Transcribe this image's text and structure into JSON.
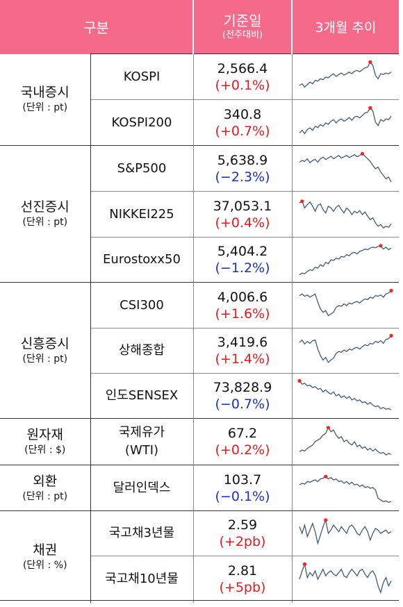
{
  "header": {
    "col_category": "구분",
    "col_base_line1": "기준일",
    "col_base_line2": "(전주대비)",
    "col_trend": "3개월 추이"
  },
  "groups": [
    {
      "name": "국내증시",
      "unit": "(단위 : pt)"
    },
    {
      "name": "선진증시",
      "unit": "(단위 : pt)"
    },
    {
      "name": "신흥증시",
      "unit": "(단위 : pt)"
    },
    {
      "name": "원자재",
      "unit": "(단위 : $)"
    },
    {
      "name": "외환",
      "unit": "(단위 : pt)"
    },
    {
      "name": "채권",
      "unit": "(단위 : %)"
    }
  ],
  "rows": [
    {
      "name": "KOSPI",
      "value": "2,566.4",
      "change": "(+0.1%)",
      "dir": "up",
      "trend": [
        0.25,
        0.3,
        0.2,
        0.28,
        0.35,
        0.3,
        0.4,
        0.38,
        0.45,
        0.42,
        0.5,
        0.48,
        0.55,
        0.6,
        0.52,
        0.58,
        0.62,
        0.56,
        0.6,
        0.65,
        0.6,
        0.68,
        0.7,
        0.66,
        0.72,
        0.78,
        0.8,
        0.95,
        0.85,
        0.55,
        0.45,
        0.6,
        0.58,
        0.62,
        0.6,
        0.65
      ]
    },
    {
      "name": "KOSPI200",
      "value": "340.8",
      "change": "(+0.7%)",
      "dir": "up",
      "trend": [
        0.2,
        0.28,
        0.18,
        0.3,
        0.35,
        0.28,
        0.4,
        0.36,
        0.45,
        0.4,
        0.5,
        0.46,
        0.55,
        0.6,
        0.5,
        0.58,
        0.62,
        0.55,
        0.6,
        0.66,
        0.58,
        0.68,
        0.7,
        0.65,
        0.72,
        0.8,
        0.82,
        0.95,
        0.86,
        0.52,
        0.42,
        0.6,
        0.55,
        0.62,
        0.6,
        0.7
      ]
    },
    {
      "name": "S&P500",
      "value": "5,638.9",
      "change": "(−2.3%)",
      "dir": "down",
      "trend": [
        0.7,
        0.75,
        0.72,
        0.8,
        0.68,
        0.75,
        0.78,
        0.7,
        0.8,
        0.85,
        0.78,
        0.82,
        0.88,
        0.8,
        0.85,
        0.9,
        0.82,
        0.86,
        0.9,
        0.84,
        0.88,
        0.92,
        0.86,
        0.9,
        0.95,
        0.88,
        0.8,
        0.72,
        0.6,
        0.5,
        0.55,
        0.4,
        0.3,
        0.2,
        0.25,
        0.1
      ]
    },
    {
      "name": "NIKKEI225",
      "value": "37,053.1",
      "change": "(+0.4%)",
      "dir": "up",
      "trend": [
        0.85,
        0.9,
        0.7,
        0.8,
        0.88,
        0.75,
        0.6,
        0.78,
        0.82,
        0.65,
        0.55,
        0.75,
        0.7,
        0.6,
        0.72,
        0.78,
        0.65,
        0.55,
        0.7,
        0.62,
        0.5,
        0.6,
        0.55,
        0.62,
        0.5,
        0.58,
        0.45,
        0.35,
        0.4,
        0.25,
        0.15,
        0.2,
        0.1,
        0.15,
        0.12,
        0.22
      ]
    },
    {
      "name": "Eurostoxx50",
      "value": "5,404.2",
      "change": "(−1.2%)",
      "dir": "down",
      "trend": [
        0.05,
        0.1,
        0.08,
        0.15,
        0.2,
        0.18,
        0.28,
        0.25,
        0.35,
        0.3,
        0.42,
        0.38,
        0.5,
        0.48,
        0.55,
        0.52,
        0.6,
        0.58,
        0.65,
        0.62,
        0.7,
        0.72,
        0.68,
        0.75,
        0.78,
        0.82,
        0.8,
        0.85,
        0.88,
        0.86,
        0.9,
        0.92,
        0.82,
        0.88,
        0.8,
        0.85
      ]
    },
    {
      "name": "CSI300",
      "value": "4,006.6",
      "change": "(+1.6%)",
      "dir": "up",
      "trend": [
        0.8,
        0.85,
        0.78,
        0.82,
        0.75,
        0.8,
        0.85,
        0.6,
        0.4,
        0.3,
        0.35,
        0.2,
        0.25,
        0.3,
        0.45,
        0.5,
        0.48,
        0.55,
        0.5,
        0.58,
        0.55,
        0.6,
        0.62,
        0.58,
        0.65,
        0.7,
        0.68,
        0.75,
        0.72,
        0.8,
        0.78,
        0.82,
        0.75,
        0.85,
        0.88,
        0.95
      ]
    },
    {
      "name": "상해종합",
      "value": "3,419.6",
      "change": "(+1.4%)",
      "dir": "up",
      "trend": [
        0.75,
        0.82,
        0.7,
        0.78,
        0.72,
        0.8,
        0.82,
        0.55,
        0.35,
        0.22,
        0.3,
        0.15,
        0.22,
        0.28,
        0.42,
        0.48,
        0.45,
        0.52,
        0.48,
        0.55,
        0.52,
        0.58,
        0.6,
        0.55,
        0.62,
        0.68,
        0.65,
        0.72,
        0.7,
        0.78,
        0.75,
        0.8,
        0.72,
        0.84,
        0.86,
        0.95
      ]
    },
    {
      "name": "인도SENSEX",
      "value": "73,828.9",
      "change": "(−0.7%)",
      "dir": "down",
      "trend": [
        0.95,
        0.85,
        0.88,
        0.8,
        0.82,
        0.75,
        0.78,
        0.7,
        0.72,
        0.62,
        0.68,
        0.6,
        0.55,
        0.62,
        0.5,
        0.55,
        0.45,
        0.5,
        0.42,
        0.48,
        0.38,
        0.42,
        0.35,
        0.38,
        0.3,
        0.32,
        0.25,
        0.3,
        0.22,
        0.18,
        0.2,
        0.12,
        0.15,
        0.1,
        0.12,
        0.08
      ]
    },
    {
      "name": "국제유가",
      "name2": "(WTI)",
      "value": "67.2",
      "change": "(+0.2%)",
      "dir": "up",
      "trend": [
        0.2,
        0.25,
        0.22,
        0.3,
        0.35,
        0.4,
        0.5,
        0.55,
        0.6,
        0.7,
        0.75,
        0.92,
        0.8,
        0.85,
        0.7,
        0.6,
        0.65,
        0.5,
        0.55,
        0.45,
        0.4,
        0.5,
        0.35,
        0.4,
        0.3,
        0.35,
        0.25,
        0.3,
        0.22,
        0.28,
        0.2,
        0.15,
        0.18,
        0.1,
        0.15,
        0.12
      ]
    },
    {
      "name": "달러인덱스",
      "value": "103.7",
      "change": "(−0.1%)",
      "dir": "down",
      "trend": [
        0.6,
        0.65,
        0.62,
        0.7,
        0.68,
        0.72,
        0.75,
        0.7,
        0.78,
        0.8,
        0.85,
        0.78,
        0.82,
        0.75,
        0.78,
        0.7,
        0.72,
        0.65,
        0.7,
        0.62,
        0.68,
        0.6,
        0.62,
        0.55,
        0.6,
        0.52,
        0.55,
        0.5,
        0.52,
        0.45,
        0.2,
        0.15,
        0.1,
        0.12,
        0.08,
        0.1
      ]
    },
    {
      "name": "국고채3년물",
      "value": "2.59",
      "change": "(+2pb)",
      "dir": "up",
      "trend": [
        0.7,
        0.5,
        0.75,
        0.4,
        0.6,
        0.8,
        0.55,
        0.2,
        0.45,
        0.7,
        0.9,
        0.5,
        0.6,
        0.75,
        0.65,
        0.55,
        0.7,
        0.6,
        0.5,
        0.7,
        0.75,
        0.65,
        0.5,
        0.45,
        0.6,
        0.7,
        0.55,
        0.3,
        0.5,
        0.65,
        0.6,
        0.5,
        0.55,
        0.6,
        0.5,
        0.55
      ]
    },
    {
      "name": "국고채10년물",
      "value": "2.81",
      "change": "(+5pb)",
      "dir": "up",
      "trend": [
        0.5,
        0.75,
        0.95,
        0.55,
        0.7,
        0.6,
        0.75,
        0.5,
        0.65,
        0.8,
        0.6,
        0.7,
        0.75,
        0.65,
        0.6,
        0.7,
        0.8,
        0.6,
        0.55,
        0.7,
        0.8,
        0.7,
        0.6,
        0.75,
        0.8,
        0.65,
        0.55,
        0.7,
        0.75,
        0.6,
        0.3,
        0.1,
        0.4,
        0.55,
        0.3,
        0.45
      ]
    }
  ],
  "colors": {
    "header_bg": "#f56a8a",
    "up": "#e8191e",
    "down": "#1a2fc4",
    "line": "#3d5a78",
    "marker": "#ff2020"
  }
}
